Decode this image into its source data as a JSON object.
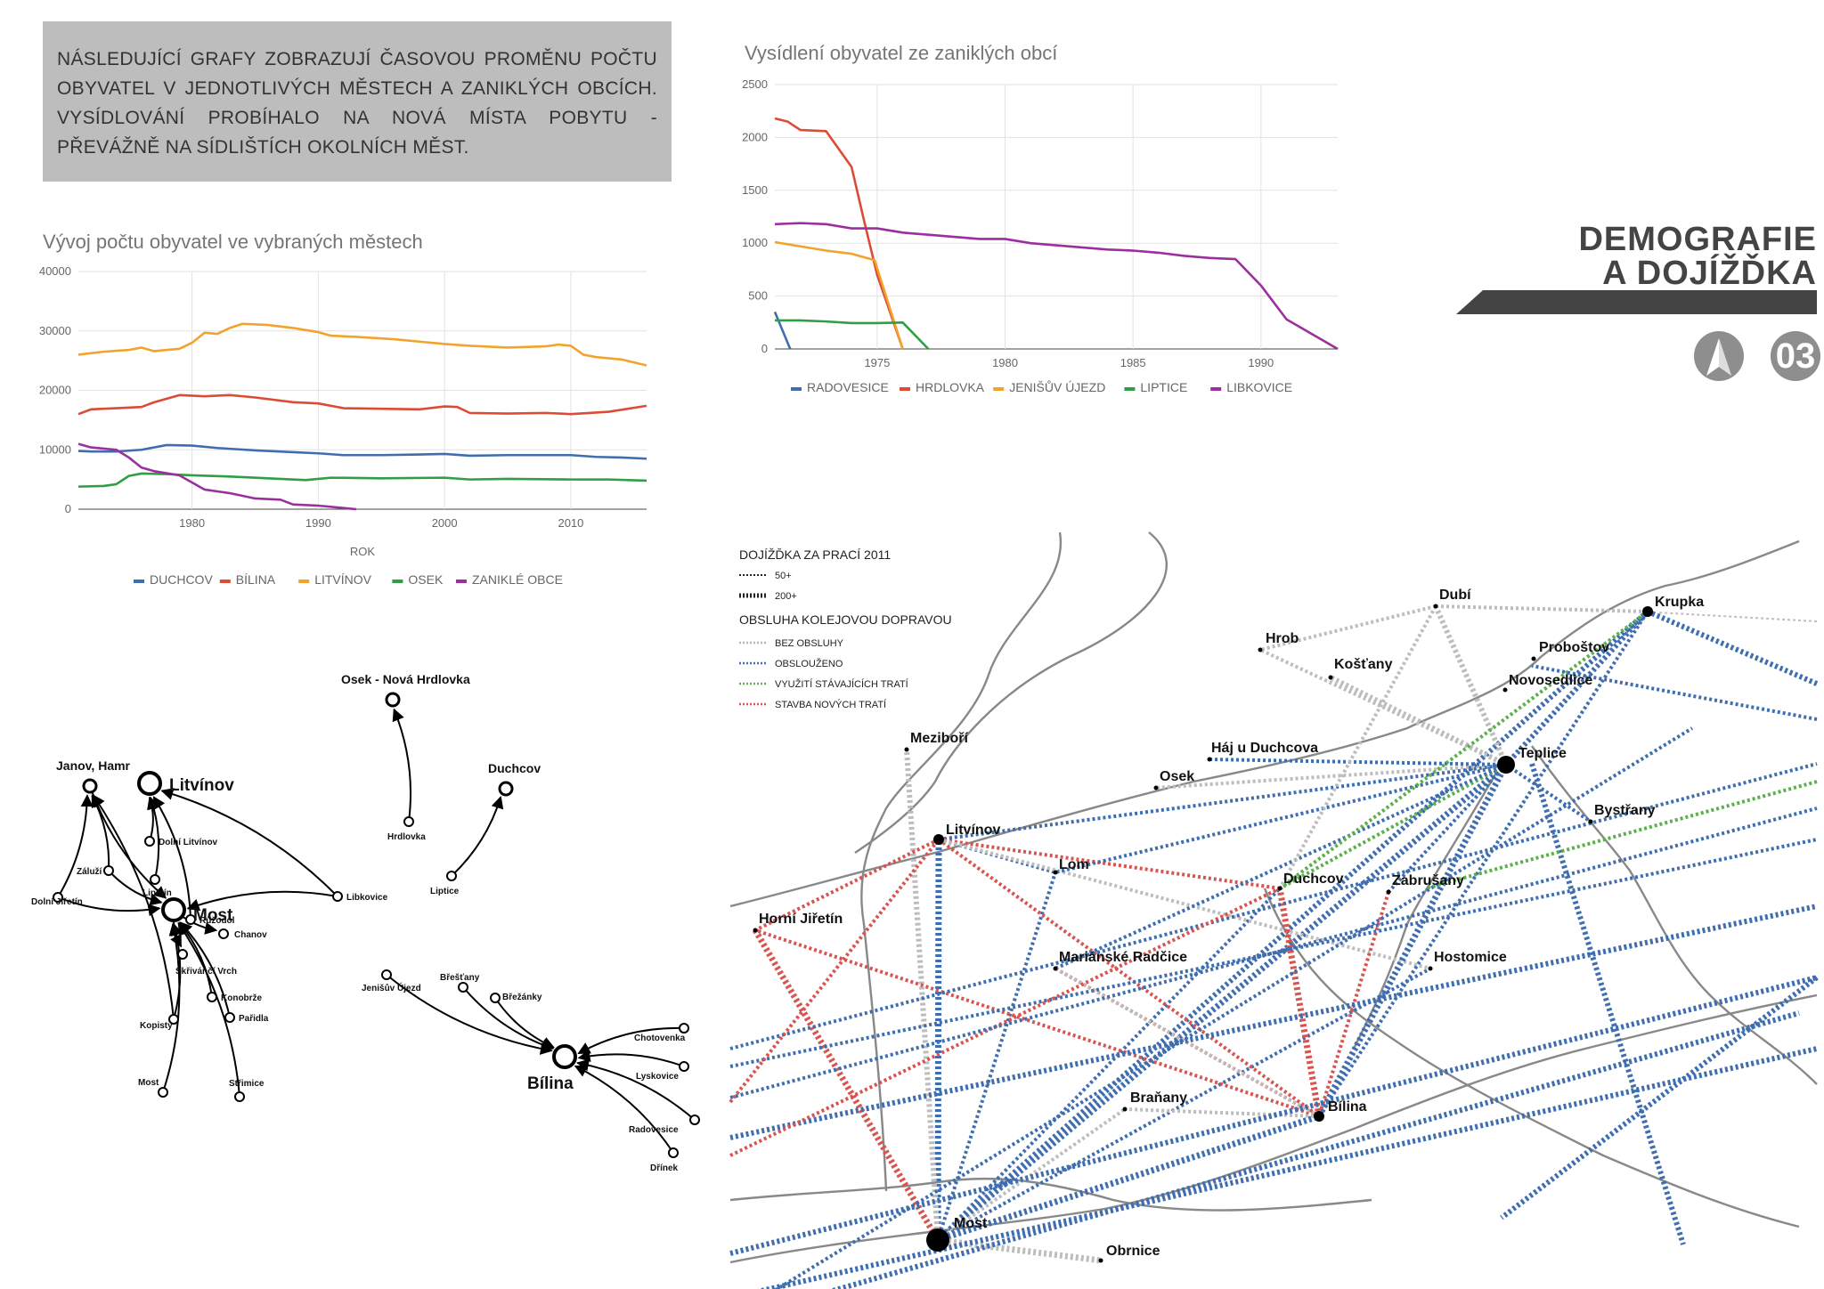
{
  "intro_text": "NÁSLEDUJÍCÍ GRAFY ZOBRAZUJÍ ČASOVOU PROMĚNU POČTU OBYVATEL V JEDNOTLIVÝCH MĚSTECH A ZANIKLÝCH OBCÍCH. VYSÍDLOVÁNÍ PROBÍHALO NA NOVÁ MÍSTA POBYTU - PŘEVÁŽNĚ NA SÍDLIŠTÍCH OKOLNÍCH MĚST.",
  "page_title": {
    "line1": "DEMOGRAFIE",
    "line2": "A DOJÍŽĎKA",
    "number": "03"
  },
  "colors": {
    "blue": "#3f6eb0",
    "red": "#dc4b35",
    "orange": "#f2a32b",
    "green": "#2f9e44",
    "purple": "#9c2f9e"
  },
  "chart_data": [
    {
      "type": "line",
      "title": "Vývoj počtu obyvatel ve vybraných městech",
      "xlabel": "ROK",
      "ylabel": "",
      "xlim": [
        1971,
        2016
      ],
      "ylim": [
        0,
        40000
      ],
      "xticks": [
        "1980",
        "1990",
        "2000",
        "2010"
      ],
      "yticks": [
        "0",
        "10000",
        "20000",
        "30000",
        "40000"
      ],
      "legend_position": "bottom",
      "grid": true,
      "series": [
        {
          "name": "DUCHCOV",
          "color": "#3f6eb0",
          "x": [
            1971,
            1972,
            1974,
            1976,
            1978,
            1980,
            1982,
            1985,
            1988,
            1990,
            1992,
            1995,
            1998,
            2000,
            2002,
            2005,
            2008,
            2010,
            2012,
            2014,
            2016
          ],
          "y": [
            9800,
            9700,
            9700,
            10000,
            10800,
            10700,
            10300,
            9900,
            9600,
            9400,
            9100,
            9100,
            9200,
            9300,
            9000,
            9100,
            9100,
            9100,
            8800,
            8700,
            8500
          ]
        },
        {
          "name": "BÍLINA",
          "color": "#dc4b35",
          "x": [
            1971,
            1972,
            1974,
            1976,
            1977,
            1979,
            1981,
            1983,
            1985,
            1988,
            1990,
            1992,
            1995,
            1998,
            2000,
            2001,
            2002,
            2005,
            2008,
            2010,
            2013,
            2016
          ],
          "y": [
            16000,
            16800,
            17000,
            17200,
            18000,
            19200,
            19000,
            19200,
            18800,
            18000,
            17800,
            17000,
            16900,
            16800,
            17300,
            17200,
            16200,
            16100,
            16200,
            16000,
            16400,
            17400
          ]
        },
        {
          "name": "LITVÍNOV",
          "color": "#f2a32b",
          "x": [
            1971,
            1973,
            1975,
            1976,
            1977,
            1979,
            1980,
            1981,
            1982,
            1983,
            1984,
            1986,
            1988,
            1990,
            1991,
            1993,
            1996,
            1998,
            2000,
            2002,
            2005,
            2008,
            2009,
            2010,
            2011,
            2012,
            2014,
            2016
          ],
          "y": [
            26000,
            26500,
            26800,
            27200,
            26600,
            27000,
            28000,
            29700,
            29500,
            30500,
            31200,
            31000,
            30500,
            29800,
            29200,
            29000,
            28600,
            28200,
            27800,
            27500,
            27200,
            27400,
            27700,
            27500,
            26000,
            25600,
            25200,
            24200
          ]
        },
        {
          "name": "OSEK",
          "color": "#2f9e44",
          "x": [
            1971,
            1973,
            1974,
            1975,
            1976,
            1978,
            1980,
            1983,
            1986,
            1989,
            1991,
            1995,
            2000,
            2002,
            2005,
            2010,
            2013,
            2016
          ],
          "y": [
            3800,
            3900,
            4200,
            5600,
            6000,
            5900,
            5700,
            5500,
            5200,
            4900,
            5300,
            5200,
            5300,
            5000,
            5100,
            5000,
            5000,
            4800
          ]
        },
        {
          "name": "ZANIKLÉ OBCE",
          "color": "#9c2f9e",
          "x": [
            1971,
            1972,
            1974,
            1975,
            1976,
            1977,
            1979,
            1981,
            1982,
            1983,
            1985,
            1987,
            1988,
            1990,
            1992,
            1993
          ],
          "y": [
            11000,
            10400,
            10000,
            8700,
            7000,
            6400,
            5700,
            3300,
            3000,
            2700,
            1800,
            1600,
            800,
            600,
            200,
            0
          ]
        }
      ]
    },
    {
      "type": "line",
      "title": "Vysídlení obyvatel ze zaniklých obcí",
      "xlabel": "",
      "ylabel": "",
      "xlim": [
        1971,
        1993
      ],
      "ylim": [
        0,
        2500
      ],
      "xticks": [
        "1975",
        "1980",
        "1985",
        "1990"
      ],
      "yticks": [
        "0",
        "500",
        "1000",
        "1500",
        "2000",
        "2500"
      ],
      "legend_position": "bottom",
      "grid": true,
      "series": [
        {
          "name": "RADOVESICE",
          "color": "#3f6eb0",
          "x": [
            1971,
            1971.6
          ],
          "y": [
            350,
            0
          ]
        },
        {
          "name": "HRDLOVKA",
          "color": "#dc4b35",
          "x": [
            1971,
            1971.5,
            1972,
            1973,
            1974,
            1974.5,
            1975,
            1976
          ],
          "y": [
            2180,
            2150,
            2070,
            2060,
            1720,
            1200,
            700,
            0
          ]
        },
        {
          "name": "JENIŠŮV ÚJEZD",
          "color": "#f2a32b",
          "x": [
            1971,
            1972,
            1973,
            1974,
            1974.9,
            1976
          ],
          "y": [
            1010,
            970,
            930,
            900,
            840,
            0
          ]
        },
        {
          "name": "LIPTICE",
          "color": "#2f9e44",
          "x": [
            1971,
            1972,
            1973,
            1974,
            1975,
            1976,
            1977
          ],
          "y": [
            270,
            270,
            260,
            245,
            245,
            250,
            0
          ]
        },
        {
          "name": "LIBKOVICE",
          "color": "#9c2f9e",
          "x": [
            1971,
            1972,
            1973,
            1974,
            1975,
            1976,
            1977,
            1978,
            1979,
            1980,
            1981,
            1982,
            1983,
            1984,
            1985,
            1986,
            1987,
            1988,
            1989,
            1990,
            1991,
            1992,
            1993
          ],
          "y": [
            1180,
            1190,
            1180,
            1140,
            1140,
            1100,
            1080,
            1060,
            1040,
            1040,
            1000,
            980,
            960,
            940,
            930,
            910,
            880,
            860,
            850,
            600,
            280,
            140,
            0
          ]
        }
      ]
    }
  ],
  "flow_diagram": {
    "nodes": [
      {
        "label": "Janov, Hamr",
        "major": false,
        "size": "lg"
      },
      {
        "label": "Litvínov",
        "major": true,
        "size": "xl"
      },
      {
        "label": "Dolní Litvínov",
        "major": false,
        "size": "sm"
      },
      {
        "label": "Lipětín",
        "major": false,
        "size": "sm"
      },
      {
        "label": "Záluží",
        "major": false,
        "size": "sm"
      },
      {
        "label": "Dolní Jiřetín",
        "major": false,
        "size": "sm"
      },
      {
        "label": "Růžodol",
        "major": false,
        "size": "sm"
      },
      {
        "label": "Libkovice",
        "major": false,
        "size": "sm"
      },
      {
        "label": "Konobrže",
        "major": false,
        "size": "sm"
      },
      {
        "label": "Kopisty",
        "major": false,
        "size": "sm"
      },
      {
        "label": "Pařidla",
        "major": false,
        "size": "sm"
      },
      {
        "label": "Most",
        "major": false,
        "size": "sm"
      },
      {
        "label": "Střimice",
        "major": false,
        "size": "sm"
      },
      {
        "label": "Most",
        "major": true,
        "size": "xl"
      },
      {
        "label": "Chanov",
        "major": false,
        "size": "sm"
      },
      {
        "label": "Skřivánčí Vrch",
        "major": false,
        "size": "sm"
      },
      {
        "label": "Osek - Nová Hrdlovka",
        "major": false,
        "size": "lg"
      },
      {
        "label": "Hrdlovka",
        "major": false,
        "size": "sm"
      },
      {
        "label": "Duchcov",
        "major": false,
        "size": "lg"
      },
      {
        "label": "Liptice",
        "major": false,
        "size": "sm"
      },
      {
        "label": "Jenišův Újezd",
        "major": false,
        "size": "sm"
      },
      {
        "label": "Břešťany",
        "major": false,
        "size": "sm"
      },
      {
        "label": "Břežánky",
        "major": false,
        "size": "sm"
      },
      {
        "label": "Bílina",
        "major": true,
        "size": "xl"
      },
      {
        "label": "Chotovenka",
        "major": false,
        "size": "sm"
      },
      {
        "label": "Lyskovice",
        "major": false,
        "size": "sm"
      },
      {
        "label": "Radovesice",
        "major": false,
        "size": "sm"
      },
      {
        "label": "Dřínek",
        "major": false,
        "size": "sm"
      }
    ]
  },
  "map": {
    "legend": {
      "title": "DOJÍŽĎKA ZA PRACÍ 2011",
      "items": [
        "50+",
        "200+"
      ],
      "subtitle": "OBSLUHA KOLEJOVOU DOPRAVOU",
      "service": [
        {
          "label": "BEZ OBSLUHY",
          "color": "#b5b5b5"
        },
        {
          "label": "OBSLOUŽENO",
          "color": "#3f6eb0"
        },
        {
          "label": "VYUŽITÍ STÁVAJÍCÍCH TRATÍ",
          "color": "#5ab04a"
        },
        {
          "label": "STAVBA NOVÝCH TRATÍ",
          "color": "#d9534f"
        }
      ]
    },
    "places": [
      "Dubí",
      "Krupka",
      "Hrob",
      "Košťany",
      "Proboštov",
      "Novosedlice",
      "Meziboří",
      "Háj u Duchcova",
      "Teplice",
      "Osek",
      "Bystřany",
      "Litvínov",
      "Lom",
      "Duchcov",
      "Zabrušany",
      "Horní Jiřetín",
      "Mariánské Radčice",
      "Hostomice",
      "Braňany",
      "Bílina",
      "Most",
      "Obrnice"
    ]
  }
}
